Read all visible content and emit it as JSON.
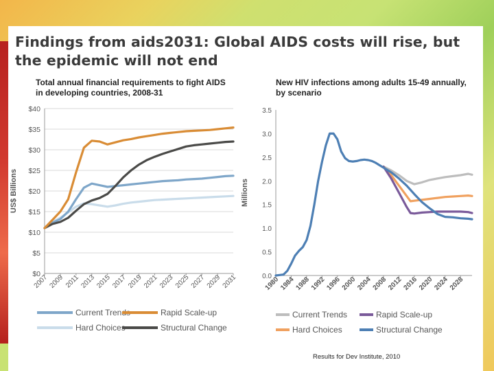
{
  "title_line1": "Findings from aids2031: Global AIDS costs will rise, but",
  "title_line2": "the epidemic will not end",
  "footer": "Results for Dev Institute, 2010",
  "colors": {
    "current_trends_left": "#7ea6c9",
    "rapid_scale_up_left": "#d98c35",
    "hard_choices_left": "#c9dcea",
    "structural_change_left": "#4a4a48",
    "current_trends_right": "#bdbdbd",
    "rapid_scale_up_right": "#7a5a9a",
    "hard_choices_right": "#f0a15f",
    "structural_change_right": "#4d7fb4"
  },
  "chart_data": [
    {
      "type": "line",
      "title": "Total annual financial requirements to fight AIDS in developing countries, 2008-31",
      "title_lines": [
        "Total annual financial requirements to fight AIDS",
        "in developing countries, 2008-31"
      ],
      "xlabel": "",
      "ylabel": "US$ Billions",
      "ylim": [
        0,
        40
      ],
      "xlim": [
        2007,
        2031
      ],
      "y_ticks": [
        0,
        5,
        10,
        15,
        20,
        25,
        30,
        35,
        40
      ],
      "y_tick_labels": [
        "$0",
        "$5",
        "$10",
        "$15",
        "$20",
        "$25",
        "$30",
        "$35",
        "$40"
      ],
      "x_ticks": [
        2007,
        2009,
        2011,
        2013,
        2015,
        2017,
        2019,
        2021,
        2023,
        2025,
        2027,
        2029,
        2031
      ],
      "x_tick_labels": [
        "2007",
        "2009",
        "2011",
        "2013",
        "2015",
        "2017",
        "2019",
        "2021",
        "2023",
        "2025",
        "2027",
        "2029",
        "2031"
      ],
      "grid": true,
      "legend": [
        {
          "name": "Current Trends",
          "key": "current_trends_left"
        },
        {
          "name": "Rapid Scale-up",
          "key": "rapid_scale_up_left"
        },
        {
          "name": "Hard Choices",
          "key": "hard_choices_left"
        },
        {
          "name": "Structural Change",
          "key": "structural_change_left"
        }
      ],
      "series": [
        {
          "name": "Hard Choices",
          "key": "hard_choices_left",
          "x": [
            2007,
            2008,
            2009,
            2010,
            2011,
            2012,
            2013,
            2014,
            2015,
            2016,
            2017,
            2018,
            2019,
            2020,
            2021,
            2022,
            2023,
            2024,
            2025,
            2026,
            2027,
            2028,
            2029,
            2030,
            2031
          ],
          "values": [
            11,
            12.5,
            13.5,
            14.8,
            16.2,
            17,
            16.8,
            16.5,
            16.2,
            16.5,
            16.9,
            17.2,
            17.4,
            17.6,
            17.8,
            17.9,
            18.0,
            18.1,
            18.2,
            18.3,
            18.4,
            18.5,
            18.6,
            18.7,
            18.8
          ]
        },
        {
          "name": "Current Trends",
          "key": "current_trends_left",
          "x": [
            2007,
            2008,
            2009,
            2010,
            2011,
            2012,
            2013,
            2014,
            2015,
            2016,
            2017,
            2018,
            2019,
            2020,
            2021,
            2022,
            2023,
            2024,
            2025,
            2026,
            2027,
            2028,
            2029,
            2030,
            2031
          ],
          "values": [
            11,
            12.3,
            13.2,
            15,
            18,
            20.8,
            21.8,
            21.4,
            21,
            21.2,
            21.4,
            21.6,
            21.8,
            22,
            22.2,
            22.4,
            22.5,
            22.6,
            22.8,
            22.9,
            23.0,
            23.2,
            23.4,
            23.6,
            23.7
          ]
        },
        {
          "name": "Structural Change",
          "key": "structural_change_left",
          "x": [
            2007,
            2008,
            2009,
            2010,
            2011,
            2012,
            2013,
            2014,
            2015,
            2016,
            2017,
            2018,
            2019,
            2020,
            2021,
            2022,
            2023,
            2024,
            2025,
            2026,
            2027,
            2028,
            2029,
            2030,
            2031
          ],
          "values": [
            11,
            12,
            12.5,
            13.5,
            15.2,
            16.8,
            17.7,
            18.3,
            19.3,
            21.2,
            23.3,
            25,
            26.4,
            27.5,
            28.3,
            29,
            29.6,
            30.2,
            30.8,
            31.1,
            31.3,
            31.5,
            31.7,
            31.9,
            32.0
          ]
        },
        {
          "name": "Rapid Scale-up",
          "key": "rapid_scale_up_left",
          "x": [
            2007,
            2008,
            2009,
            2010,
            2011,
            2012,
            2013,
            2014,
            2015,
            2016,
            2017,
            2018,
            2019,
            2020,
            2021,
            2022,
            2023,
            2024,
            2025,
            2026,
            2027,
            2028,
            2029,
            2030,
            2031
          ],
          "values": [
            11,
            13,
            15,
            18,
            24.5,
            30.5,
            32.2,
            32,
            31.3,
            31.8,
            32.3,
            32.6,
            33,
            33.3,
            33.6,
            33.9,
            34.1,
            34.3,
            34.5,
            34.6,
            34.7,
            34.8,
            35.0,
            35.2,
            35.4
          ]
        }
      ]
    },
    {
      "type": "line",
      "title": "New HIV infections among adults 15-49 annually, by scenario",
      "title_lines": [
        "New HIV infections among adults 15-49 annually,",
        "by scenario"
      ],
      "xlabel": "",
      "ylabel": "Millions",
      "ylim": [
        0,
        3.5
      ],
      "xlim": [
        1980,
        2031
      ],
      "y_ticks": [
        0,
        0.5,
        1.0,
        1.5,
        2.0,
        2.5,
        3.0,
        3.5
      ],
      "y_tick_labels": [
        "0.0",
        "0.5",
        "1.0",
        "1.5",
        "2.0",
        "2.5",
        "3.0",
        "3.5"
      ],
      "x_ticks": [
        1980,
        1984,
        1988,
        1992,
        1996,
        2000,
        2004,
        2008,
        2012,
        2016,
        2020,
        2024,
        2028
      ],
      "x_tick_labels": [
        "1980",
        "1984",
        "1988",
        "1992",
        "1996",
        "2000",
        "2004",
        "2008",
        "2012",
        "2016",
        "2020",
        "2024",
        "2028"
      ],
      "grid": false,
      "legend": [
        {
          "name": "Current Trends",
          "key": "current_trends_right"
        },
        {
          "name": "Rapid Scale-up",
          "key": "rapid_scale_up_right"
        },
        {
          "name": "Hard Choices",
          "key": "hard_choices_right"
        },
        {
          "name": "Structural Change",
          "key": "structural_change_right"
        }
      ],
      "series": [
        {
          "name": "Current Trends",
          "key": "current_trends_right",
          "x": [
            2008,
            2010,
            2012,
            2014,
            2016,
            2018,
            2020,
            2022,
            2024,
            2026,
            2028,
            2030,
            2031
          ],
          "values": [
            2.3,
            2.22,
            2.12,
            2.0,
            1.93,
            1.97,
            2.02,
            2.05,
            2.08,
            2.1,
            2.12,
            2.15,
            2.13
          ]
        },
        {
          "name": "Hard Choices",
          "key": "hard_choices_right",
          "x": [
            2008,
            2010,
            2012,
            2014,
            2015,
            2016,
            2018,
            2020,
            2022,
            2024,
            2026,
            2028,
            2030,
            2031
          ],
          "values": [
            2.3,
            2.12,
            1.9,
            1.68,
            1.57,
            1.58,
            1.6,
            1.62,
            1.64,
            1.66,
            1.67,
            1.68,
            1.69,
            1.68
          ]
        },
        {
          "name": "Rapid Scale-up",
          "key": "rapid_scale_up_right",
          "x": [
            2008,
            2010,
            2012,
            2014,
            2015,
            2016,
            2018,
            2020,
            2022,
            2024,
            2026,
            2028,
            2030,
            2031
          ],
          "values": [
            2.3,
            2.05,
            1.75,
            1.45,
            1.32,
            1.31,
            1.33,
            1.34,
            1.35,
            1.35,
            1.35,
            1.35,
            1.34,
            1.32
          ]
        },
        {
          "name": "Structural Change",
          "key": "structural_change_right",
          "x": [
            1980,
            1981,
            1982,
            1983,
            1984,
            1985,
            1986,
            1987,
            1988,
            1989,
            1990,
            1991,
            1992,
            1993,
            1994,
            1995,
            1996,
            1997,
            1998,
            1999,
            2000,
            2001,
            2002,
            2003,
            2004,
            2005,
            2006,
            2007,
            2008,
            2010,
            2012,
            2014,
            2016,
            2018,
            2020,
            2022,
            2024,
            2026,
            2028,
            2030,
            2031
          ],
          "values": [
            0.0,
            0.01,
            0.02,
            0.1,
            0.25,
            0.42,
            0.52,
            0.6,
            0.75,
            1.05,
            1.5,
            2.0,
            2.4,
            2.75,
            3.0,
            3.0,
            2.88,
            2.62,
            2.48,
            2.42,
            2.41,
            2.42,
            2.44,
            2.45,
            2.44,
            2.42,
            2.38,
            2.33,
            2.28,
            2.18,
            2.05,
            1.9,
            1.72,
            1.55,
            1.42,
            1.3,
            1.24,
            1.23,
            1.21,
            1.2,
            1.19
          ]
        }
      ]
    }
  ]
}
